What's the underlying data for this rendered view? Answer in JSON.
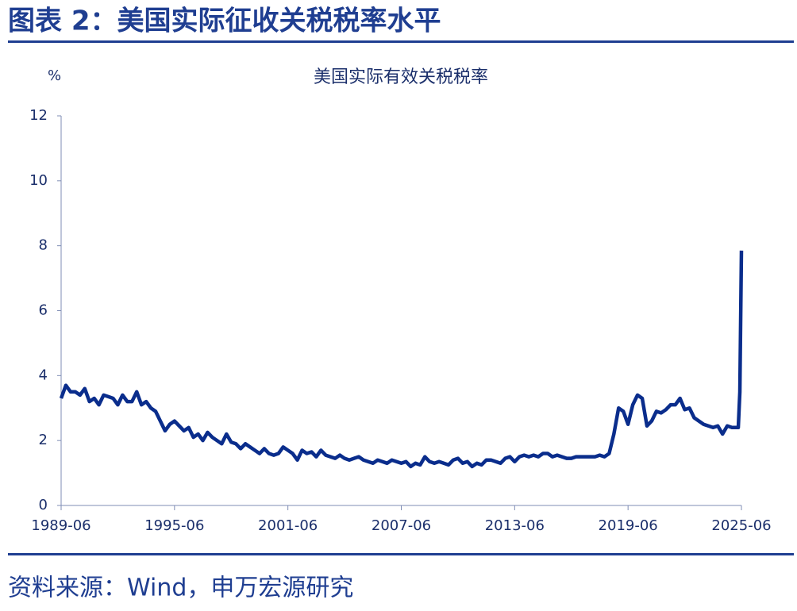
{
  "header": {
    "title": "图表 2：美国实际征收关税税率水平"
  },
  "chart_data": {
    "type": "line",
    "title": "美国实际有效关税税率",
    "y_label": "%",
    "x": [
      "1989-06",
      "1989-09",
      "1989-12",
      "1990-03",
      "1990-06",
      "1990-09",
      "1990-12",
      "1991-03",
      "1991-06",
      "1991-09",
      "1991-12",
      "1992-03",
      "1992-06",
      "1992-09",
      "1992-12",
      "1993-03",
      "1993-06",
      "1993-09",
      "1993-12",
      "1994-03",
      "1994-06",
      "1994-09",
      "1994-12",
      "1995-03",
      "1995-06",
      "1995-09",
      "1995-12",
      "1996-03",
      "1996-06",
      "1996-09",
      "1996-12",
      "1997-03",
      "1997-06",
      "1997-09",
      "1997-12",
      "1998-03",
      "1998-06",
      "1998-09",
      "1998-12",
      "1999-03",
      "1999-06",
      "1999-09",
      "1999-12",
      "2000-03",
      "2000-06",
      "2000-09",
      "2000-12",
      "2001-03",
      "2001-06",
      "2001-09",
      "2001-12",
      "2002-03",
      "2002-06",
      "2002-09",
      "2002-12",
      "2003-03",
      "2003-06",
      "2003-09",
      "2003-12",
      "2004-03",
      "2004-06",
      "2004-09",
      "2004-12",
      "2005-03",
      "2005-06",
      "2005-09",
      "2005-12",
      "2006-03",
      "2006-06",
      "2006-09",
      "2006-12",
      "2007-03",
      "2007-06",
      "2007-09",
      "2007-12",
      "2008-03",
      "2008-06",
      "2008-09",
      "2008-12",
      "2009-03",
      "2009-06",
      "2009-09",
      "2009-12",
      "2010-03",
      "2010-06",
      "2010-09",
      "2010-12",
      "2011-03",
      "2011-06",
      "2011-09",
      "2011-12",
      "2012-03",
      "2012-06",
      "2012-09",
      "2012-12",
      "2013-03",
      "2013-06",
      "2013-09",
      "2013-12",
      "2014-03",
      "2014-06",
      "2014-09",
      "2014-12",
      "2015-03",
      "2015-06",
      "2015-09",
      "2015-12",
      "2016-03",
      "2016-06",
      "2016-09",
      "2016-12",
      "2017-03",
      "2017-06",
      "2017-09",
      "2017-12",
      "2018-03",
      "2018-06",
      "2018-09",
      "2018-12",
      "2019-03",
      "2019-06",
      "2019-09",
      "2019-12",
      "2020-03",
      "2020-06",
      "2020-09",
      "2020-12",
      "2021-03",
      "2021-06",
      "2021-09",
      "2021-12",
      "2022-03",
      "2022-06",
      "2022-09",
      "2022-12",
      "2023-03",
      "2023-06",
      "2023-09",
      "2023-12",
      "2024-03",
      "2024-06",
      "2024-09",
      "2024-12",
      "2025-03",
      "2025-04",
      "2025-05",
      "2025-06"
    ],
    "series": [
      {
        "name": "美国实际有效关税税率",
        "color": "#0a2d8c",
        "values": [
          3.3,
          3.7,
          3.5,
          3.5,
          3.4,
          3.6,
          3.2,
          3.3,
          3.1,
          3.4,
          3.35,
          3.3,
          3.1,
          3.4,
          3.2,
          3.2,
          3.5,
          3.1,
          3.2,
          3.0,
          2.9,
          2.6,
          2.3,
          2.5,
          2.6,
          2.45,
          2.3,
          2.4,
          2.1,
          2.2,
          2.0,
          2.25,
          2.1,
          2.0,
          1.9,
          2.2,
          1.95,
          1.9,
          1.75,
          1.9,
          1.8,
          1.7,
          1.6,
          1.75,
          1.6,
          1.55,
          1.6,
          1.8,
          1.7,
          1.6,
          1.4,
          1.7,
          1.6,
          1.65,
          1.5,
          1.7,
          1.55,
          1.5,
          1.45,
          1.55,
          1.45,
          1.4,
          1.45,
          1.5,
          1.4,
          1.35,
          1.3,
          1.4,
          1.35,
          1.3,
          1.4,
          1.35,
          1.3,
          1.35,
          1.2,
          1.3,
          1.25,
          1.5,
          1.35,
          1.3,
          1.35,
          1.3,
          1.25,
          1.4,
          1.45,
          1.3,
          1.35,
          1.2,
          1.3,
          1.25,
          1.4,
          1.4,
          1.35,
          1.3,
          1.45,
          1.5,
          1.35,
          1.5,
          1.55,
          1.5,
          1.55,
          1.5,
          1.6,
          1.6,
          1.5,
          1.55,
          1.5,
          1.45,
          1.45,
          1.5,
          1.5,
          1.5,
          1.5,
          1.5,
          1.55,
          1.5,
          1.6,
          2.2,
          3.0,
          2.9,
          2.5,
          3.1,
          3.4,
          3.3,
          2.45,
          2.6,
          2.9,
          2.85,
          2.95,
          3.1,
          3.1,
          3.3,
          2.95,
          3.0,
          2.7,
          2.6,
          2.5,
          2.45,
          2.4,
          2.45,
          2.2,
          2.45,
          2.4,
          2.4,
          2.4,
          3.5,
          7.85
        ]
      }
    ],
    "xlim": [
      "1989-06",
      "2025-06"
    ],
    "xticks": [
      "1989-06",
      "1995-06",
      "2001-06",
      "2007-06",
      "2013-06",
      "2019-06",
      "2025-06"
    ],
    "ylim": [
      0,
      12
    ],
    "yticks": [
      0,
      2,
      4,
      6,
      8,
      10,
      12
    ],
    "grid": false
  },
  "source": "资料来源：Wind，申万宏源研究"
}
